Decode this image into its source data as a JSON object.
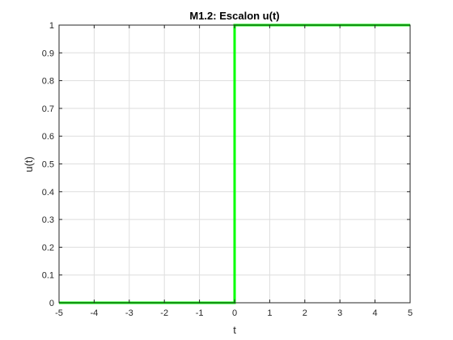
{
  "chart_data": {
    "type": "line",
    "title": "M1.2: Escalon u(t)",
    "xlabel": "t",
    "ylabel": "u(t)",
    "xlim": [
      -5,
      5
    ],
    "ylim": [
      0,
      1
    ],
    "xticks": [
      -5,
      -4,
      -3,
      -2,
      -1,
      0,
      1,
      2,
      3,
      4,
      5
    ],
    "yticks": [
      0,
      0.1,
      0.2,
      0.3,
      0.4,
      0.5,
      0.6,
      0.7,
      0.8,
      0.9,
      1
    ],
    "grid": true,
    "legend": "none",
    "series": [
      {
        "color": "#00ff00",
        "x": [
          -5,
          0,
          0,
          5
        ],
        "y": [
          0,
          0,
          1,
          1
        ]
      }
    ]
  }
}
